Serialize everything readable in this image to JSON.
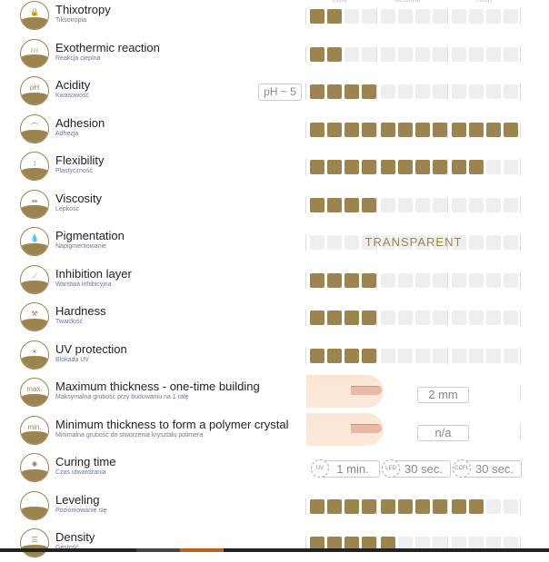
{
  "colors": {
    "accent": "#9b8450",
    "empty": "#eeeeee"
  },
  "scale_headers": [
    "LOW",
    "MEDIUM",
    "HIGH"
  ],
  "properties": [
    {
      "title": "Thixotropy",
      "subtitle": "Tiksotropia",
      "icon": "thixotropy-icon",
      "glyph": "🔒",
      "type": "scale",
      "level": 2
    },
    {
      "title": "Exothermic reaction",
      "subtitle": "Reakcja cieplna",
      "icon": "heat-icon",
      "glyph": "≀≀≀",
      "type": "scale",
      "level": 2
    },
    {
      "title": "Acidity",
      "subtitle": "Kwasowość",
      "icon": "ph-drop-icon",
      "glyph": "pH",
      "type": "scale",
      "level": 4,
      "badge": "pH ~ 5"
    },
    {
      "title": "Adhesion",
      "subtitle": "Adhezja",
      "icon": "adhesion-icon",
      "glyph": "⌒",
      "type": "scale",
      "level": 12
    },
    {
      "title": "Flexibility",
      "subtitle": "Plastyczność",
      "icon": "flexibility-icon",
      "glyph": "↕",
      "type": "scale",
      "level": 10
    },
    {
      "title": "Viscosity",
      "subtitle": "Lepkość",
      "icon": "viscosity-icon",
      "glyph": "⇹",
      "type": "scale",
      "level": 4
    },
    {
      "title": "Pigmentation",
      "subtitle": "Napigmentowanie",
      "icon": "drops-icon",
      "glyph": "💧",
      "type": "text",
      "value": "TRANSPARENT"
    },
    {
      "title": "Inhibition layer",
      "subtitle": "Warstwa inhibicyjna",
      "icon": "inhibition-layer-icon",
      "glyph": "⟋",
      "type": "scale",
      "level": 4
    },
    {
      "title": "Hardness",
      "subtitle": "Twardość",
      "icon": "hammer-icon",
      "glyph": "⚒",
      "type": "scale",
      "level": 4
    },
    {
      "title": "UV protection",
      "subtitle": "Blokada UV",
      "icon": "uv-protection-icon",
      "glyph": "☀",
      "type": "scale",
      "level": 4
    },
    {
      "title": "Maximum thickness - one-time building",
      "subtitle": "Maksymalna grubość przy budowaniu na 1 ratę",
      "icon": "max-thickness-icon",
      "glyph": "max.",
      "type": "nail",
      "value": "2 mm"
    },
    {
      "title": "Minimum thickness to form a polymer crystal",
      "subtitle": "Minimalna grubość do stworzenia kryształu polimera",
      "icon": "min-thickness-icon",
      "glyph": "min.",
      "type": "nail",
      "value": "n/a"
    },
    {
      "title": "Curing time",
      "subtitle": "Czas utwardzania",
      "icon": "lamp-icon",
      "glyph": "✺",
      "type": "cure",
      "times": [
        {
          "lamp": "UV",
          "value": "1 min."
        },
        {
          "lamp": "LED",
          "value": "30 sec."
        },
        {
          "lamp": "CCFL",
          "value": "30 sec."
        }
      ]
    },
    {
      "title": "Leveling",
      "subtitle": "Poziomowanie się",
      "icon": "leveling-icon",
      "glyph": "",
      "type": "scale",
      "level": 10
    },
    {
      "title": "Density",
      "subtitle": "Gęstość",
      "icon": "density-icon",
      "glyph": "☰",
      "type": "scale",
      "level": 5
    }
  ]
}
